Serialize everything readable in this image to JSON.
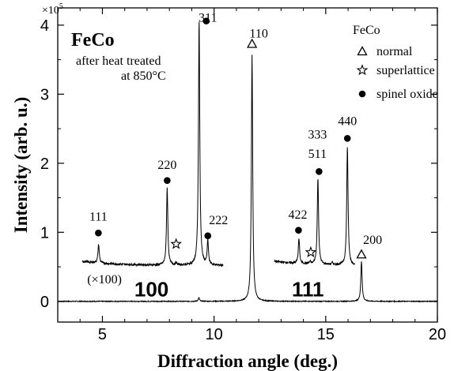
{
  "chart_data": {
    "type": "line",
    "title": "FeCo",
    "subtitle_lines": [
      "after heat treated",
      "at 850°C"
    ],
    "xlabel": "Diffraction angle (deg.)",
    "ylabel": "Intensity (arb. u.)",
    "xlim": [
      3,
      20
    ],
    "ylim": [
      -0.3,
      4.25
    ],
    "y_exponent_label": "×10",
    "y_exponent_power": "5",
    "x_ticks": [
      5,
      10,
      15,
      20
    ],
    "y_ticks": [
      0,
      1,
      2,
      3,
      4
    ],
    "scale_note": "(×100)",
    "direction_labels": [
      {
        "text": "100",
        "x": 7.2,
        "y": 0.07
      },
      {
        "text": "111",
        "x": 14.2,
        "y": 0.07
      }
    ],
    "legend": {
      "title": "FeCo",
      "entries": [
        {
          "marker": "triangle",
          "label": "normal"
        },
        {
          "marker": "star",
          "label": "superlattice"
        },
        {
          "marker": "dot",
          "label": "spinel oxide"
        }
      ]
    },
    "series": [
      {
        "baseline": 0.0,
        "x_range": [
          3,
          20
        ],
        "peaks": [
          [
            9.32,
            0.05
          ],
          [
            11.7,
            3.57
          ],
          [
            16.6,
            0.58
          ]
        ]
      },
      {
        "scale": "×100",
        "baseline": 0.52,
        "x_range": [
          4.1,
          10.4
        ],
        "peaks": [
          [
            4.83,
            0.27
          ],
          [
            7.9,
            1.12
          ],
          [
            8.3,
            0.03
          ],
          [
            9.33,
            3.55
          ],
          [
            9.72,
            0.35
          ]
        ]
      },
      {
        "scale": "×100",
        "baseline": 0.52,
        "x_range": [
          12.7,
          16.3
        ],
        "peaks": [
          [
            13.8,
            0.36
          ],
          [
            14.65,
            1.25
          ],
          [
            15.97,
            1.72
          ],
          [
            14.3,
            0.03
          ],
          [
            15.3,
            0.03
          ]
        ]
      }
    ],
    "peak_labels": [
      {
        "text": "311",
        "x": 9.72,
        "y": 4.05,
        "marker": "dot",
        "mx": 9.65,
        "my": 4.06
      },
      {
        "text": "110",
        "x": 12.0,
        "y": 3.82,
        "marker": "triangle",
        "mx": 11.7,
        "my": 3.73
      },
      {
        "text": "220",
        "x": 7.9,
        "y": 1.92,
        "marker": "dot",
        "mx": 7.9,
        "my": 1.75
      },
      {
        "text": "111",
        "x": 4.82,
        "y": 1.17,
        "marker": "dot",
        "mx": 4.82,
        "my": 0.99
      },
      {
        "text": "222",
        "x": 10.2,
        "y": 1.12,
        "marker": "none"
      },
      {
        "text": "422",
        "x": 13.75,
        "y": 1.2,
        "marker": "dot",
        "mx": 13.78,
        "my": 1.03
      },
      {
        "text": "333",
        "x": 14.63,
        "y": 2.36,
        "marker": "dot",
        "mx": 14.7,
        "my": 1.88
      },
      {
        "text": "511",
        "x": 14.63,
        "y": 2.08,
        "marker": "none"
      },
      {
        "text": "440",
        "x": 15.97,
        "y": 2.55,
        "marker": "dot",
        "mx": 15.97,
        "my": 2.36
      },
      {
        "text": "200",
        "x": 17.1,
        "y": 0.83,
        "marker": "triangle",
        "mx": 16.6,
        "my": 0.68
      }
    ],
    "extra_markers": [
      {
        "marker": "dot",
        "x": 9.72,
        "y": 0.95
      },
      {
        "marker": "star",
        "x": 8.3,
        "y": 0.83
      },
      {
        "marker": "star",
        "x": 14.33,
        "y": 0.71
      }
    ]
  }
}
